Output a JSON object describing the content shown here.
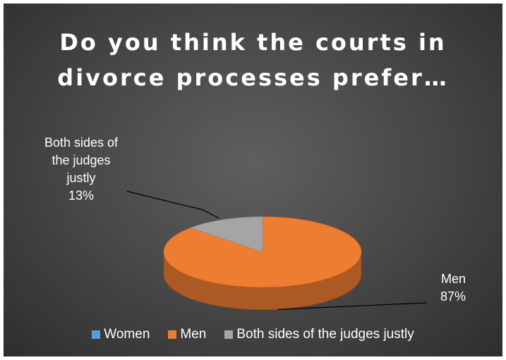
{
  "chart_data": {
    "type": "pie",
    "title_lines": [
      "Do you think the courts in",
      "divorce processes prefer…"
    ],
    "categories": [
      "Women",
      "Men",
      "Both sides of the judges justly"
    ],
    "values": [
      0,
      87,
      13
    ],
    "colors": [
      "#5B9BD5",
      "#ED7D31",
      "#A5A5A5"
    ],
    "data_labels": [
      {
        "lines": [
          "Both sides of",
          "the judges",
          "justly",
          "13%"
        ]
      },
      {
        "lines": [
          "Men",
          "87%"
        ]
      }
    ],
    "legend_position": "bottom",
    "style": "3d"
  },
  "legend": {
    "items": [
      {
        "label": "Women",
        "color": "#5B9BD5"
      },
      {
        "label": "Men",
        "color": "#ED7D31"
      },
      {
        "label": "Both sides of the judges justly",
        "color": "#A5A5A5"
      }
    ]
  }
}
